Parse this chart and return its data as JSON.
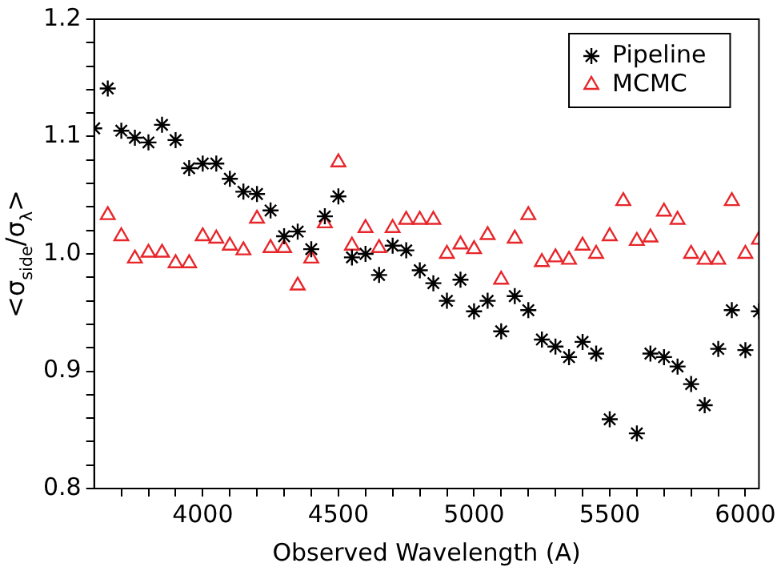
{
  "chart_data": {
    "type": "scatter",
    "xlabel": "Observed Wavelength (A)",
    "ylabel": "<σ$_{side}$/σ$_{λ}$>",
    "x": [
      3600,
      3650,
      3700,
      3750,
      3800,
      3850,
      3900,
      3950,
      4000,
      4050,
      4100,
      4150,
      4200,
      4250,
      4300,
      4350,
      4400,
      4450,
      4500,
      4550,
      4600,
      4650,
      4700,
      4750,
      4800,
      4850,
      4900,
      4950,
      5000,
      5050,
      5100,
      5150,
      5200,
      5250,
      5300,
      5350,
      5400,
      5450,
      5500,
      5550,
      5600,
      5650,
      5700,
      5750,
      5800,
      5850,
      5900,
      5950,
      6000,
      6050
    ],
    "series": [
      {
        "name": "Pipeline",
        "color": "#000000",
        "marker": "cross",
        "values": [
          1.107,
          1.141,
          1.105,
          1.099,
          1.095,
          1.11,
          1.097,
          1.073,
          1.077,
          1.077,
          1.064,
          1.053,
          1.051,
          1.037,
          1.015,
          1.019,
          1.004,
          1.032,
          1.049,
          0.997,
          1.0,
          0.982,
          1.007,
          1.003,
          0.986,
          0.975,
          0.96,
          0.978,
          0.951,
          0.96,
          0.934,
          0.964,
          0.952,
          0.927,
          0.921,
          0.912,
          0.925,
          0.915,
          0.859,
          null,
          0.847,
          0.915,
          0.912,
          0.904,
          0.889,
          0.871,
          0.919,
          0.952,
          0.918,
          0.951
        ]
      },
      {
        "name": "MCMC",
        "color": "#e8262a",
        "marker": "triangle",
        "values": [
          null,
          1.033,
          1.015,
          0.996,
          1.001,
          1.001,
          0.992,
          0.992,
          1.015,
          1.013,
          1.007,
          1.003,
          1.03,
          1.005,
          1.005,
          0.973,
          0.996,
          1.026,
          1.078,
          1.007,
          1.022,
          1.005,
          1.022,
          1.029,
          1.029,
          1.029,
          1.0,
          1.008,
          1.004,
          1.016,
          0.978,
          1.013,
          1.033,
          0.993,
          0.997,
          0.995,
          1.007,
          1.0,
          1.015,
          1.045,
          1.011,
          1.014,
          1.036,
          1.029,
          1.0,
          0.995,
          0.995,
          1.045,
          1.0,
          1.012
        ]
      }
    ],
    "xlim": [
      3600,
      6050
    ],
    "xticks": [
      {
        "value": 3700,
        "label": null
      },
      {
        "value": 3800,
        "label": null
      },
      {
        "value": 3900,
        "label": null
      },
      4000,
      {
        "value": 4100,
        "label": null
      },
      {
        "value": 4200,
        "label": null
      },
      {
        "value": 4300,
        "label": null
      },
      {
        "value": 4400,
        "label": null
      },
      4500,
      {
        "value": 4600,
        "label": null
      },
      {
        "value": 4700,
        "label": null
      },
      {
        "value": 4800,
        "label": null
      },
      {
        "value": 4900,
        "label": null
      },
      5000,
      {
        "value": 5100,
        "label": null
      },
      {
        "value": 5200,
        "label": null
      },
      {
        "value": 5300,
        "label": null
      },
      {
        "value": 5400,
        "label": null
      },
      5500,
      {
        "value": 5600,
        "label": null
      },
      {
        "value": 5700,
        "label": null
      },
      {
        "value": 5800,
        "label": null
      },
      {
        "value": 5900,
        "label": null
      },
      6000
    ],
    "ylim": [
      0.8,
      1.2
    ],
    "yticks": [
      {
        "value": 0.8,
        "label": "0.8"
      },
      {
        "value": 0.82,
        "label": null
      },
      {
        "value": 0.84,
        "label": null
      },
      {
        "value": 0.86,
        "label": null
      },
      {
        "value": 0.88,
        "label": null
      },
      {
        "value": 0.9,
        "label": "0.9"
      },
      {
        "value": 0.92,
        "label": null
      },
      {
        "value": 0.94,
        "label": null
      },
      {
        "value": 0.96,
        "label": null
      },
      {
        "value": 0.98,
        "label": null
      },
      {
        "value": 1.0,
        "label": "1.0"
      },
      {
        "value": 1.02,
        "label": null
      },
      {
        "value": 1.04,
        "label": null
      },
      {
        "value": 1.06,
        "label": null
      },
      {
        "value": 1.08,
        "label": null
      },
      {
        "value": 1.1,
        "label": "1.1"
      },
      {
        "value": 1.12,
        "label": null
      },
      {
        "value": 1.14,
        "label": null
      },
      {
        "value": 1.16,
        "label": null
      },
      {
        "value": 1.18,
        "label": null
      },
      {
        "value": 1.2,
        "label": "1.2"
      }
    ],
    "grid": false,
    "legend": "top right"
  }
}
